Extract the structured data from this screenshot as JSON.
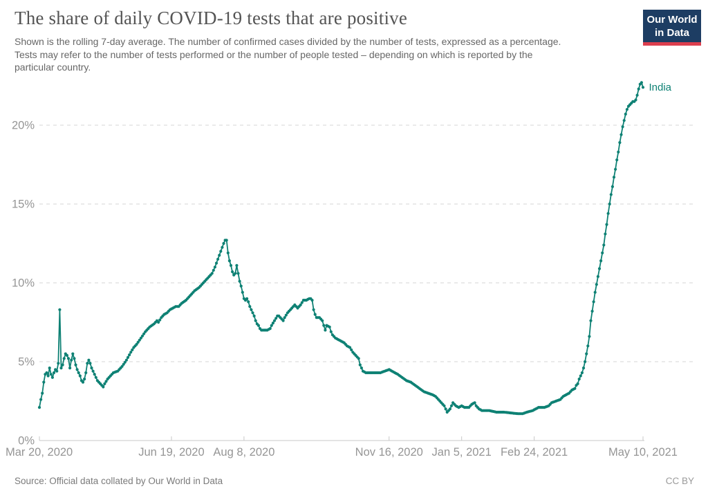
{
  "header": {
    "title": "The share of daily COVID-19 tests that are positive",
    "subtitle": "Shown is the rolling 7-day average. The number of confirmed cases divided by the number of tests, expressed as a percentage.\nTests may refer to the number of tests performed or the number of people tested – depending on which is reported by the\nparticular country.",
    "logo": {
      "line1": "Our World",
      "line2": "in Data",
      "bg_color": "#1d3d63",
      "bar_color": "#dc3e4e"
    }
  },
  "footer": {
    "source": "Source: Official data collated by Our World in Data",
    "license": "CC BY"
  },
  "chart_data": {
    "type": "line",
    "title": "The share of daily COVID-19 tests that are positive",
    "unit": "%",
    "grid": true,
    "legend": "end-of-line-label",
    "series_label": "India",
    "line_color": "#0e8174",
    "axis_text_color": "#959595",
    "grid_color": "#d6d6d6",
    "axis_line_color": "#c8c8c8",
    "ylim": [
      0,
      23
    ],
    "x_range_days": 416,
    "x_axis_range": [
      "Mar 20, 2020",
      "May 10, 2021"
    ],
    "y_ticks": [
      {
        "label": "0%",
        "value": 0
      },
      {
        "label": "5%",
        "value": 5
      },
      {
        "label": "10%",
        "value": 10
      },
      {
        "label": "15%",
        "value": 15
      },
      {
        "label": "20%",
        "value": 20
      }
    ],
    "x_ticks": [
      {
        "label": "Mar 20, 2020",
        "day": 0,
        "align": "start"
      },
      {
        "label": "Jun 19, 2020",
        "day": 91,
        "align": "middle"
      },
      {
        "label": "Aug 8, 2020",
        "day": 141,
        "align": "middle"
      },
      {
        "label": "Nov 16, 2020",
        "day": 241,
        "align": "middle"
      },
      {
        "label": "Jan 5, 2021",
        "day": 291,
        "align": "middle"
      },
      {
        "label": "Feb 24, 2021",
        "day": 341,
        "align": "middle"
      },
      {
        "label": "May 10, 2021",
        "day": 416,
        "align": "middle"
      }
    ],
    "series": [
      {
        "name": "India",
        "points": [
          [
            0,
            2.1
          ],
          [
            1,
            2.6
          ],
          [
            2,
            3.0
          ],
          [
            3,
            3.7
          ],
          [
            4,
            4.2
          ],
          [
            5,
            4.3
          ],
          [
            6,
            4.1
          ],
          [
            7,
            4.6
          ],
          [
            8,
            4.2
          ],
          [
            9,
            4.0
          ],
          [
            10,
            4.3
          ],
          [
            11,
            4.5
          ],
          [
            12,
            4.4
          ],
          [
            13,
            4.9
          ],
          [
            14,
            8.3
          ],
          [
            15,
            4.6
          ],
          [
            16,
            4.8
          ],
          [
            17,
            5.2
          ],
          [
            18,
            5.5
          ],
          [
            19,
            5.4
          ],
          [
            20,
            5.2
          ],
          [
            21,
            4.6
          ],
          [
            22,
            5.1
          ],
          [
            23,
            5.5
          ],
          [
            24,
            5.2
          ],
          [
            25,
            4.8
          ],
          [
            26,
            4.5
          ],
          [
            27,
            4.3
          ],
          [
            28,
            4.1
          ],
          [
            29,
            3.8
          ],
          [
            30,
            3.7
          ],
          [
            31,
            3.9
          ],
          [
            32,
            4.3
          ],
          [
            33,
            4.9
          ],
          [
            34,
            5.1
          ],
          [
            35,
            4.9
          ],
          [
            36,
            4.6
          ],
          [
            38,
            4.2
          ],
          [
            40,
            3.8
          ],
          [
            42,
            3.6
          ],
          [
            44,
            3.4
          ],
          [
            45,
            3.6
          ],
          [
            47,
            3.9
          ],
          [
            49,
            4.1
          ],
          [
            51,
            4.3
          ],
          [
            54,
            4.4
          ],
          [
            57,
            4.7
          ],
          [
            60,
            5.1
          ],
          [
            63,
            5.6
          ],
          [
            65,
            5.9
          ],
          [
            67,
            6.1
          ],
          [
            70,
            6.5
          ],
          [
            73,
            6.9
          ],
          [
            76,
            7.2
          ],
          [
            79,
            7.4
          ],
          [
            81,
            7.6
          ],
          [
            82,
            7.5
          ],
          [
            84,
            7.8
          ],
          [
            86,
            8.0
          ],
          [
            88,
            8.1
          ],
          [
            90,
            8.3
          ],
          [
            92,
            8.4
          ],
          [
            94,
            8.5
          ],
          [
            96,
            8.5
          ],
          [
            98,
            8.7
          ],
          [
            101,
            8.9
          ],
          [
            104,
            9.2
          ],
          [
            107,
            9.5
          ],
          [
            110,
            9.7
          ],
          [
            113,
            10.0
          ],
          [
            116,
            10.3
          ],
          [
            119,
            10.6
          ],
          [
            121,
            11.0
          ],
          [
            123,
            11.5
          ],
          [
            125,
            12.0
          ],
          [
            127,
            12.5
          ],
          [
            128,
            12.7
          ],
          [
            129,
            12.7
          ],
          [
            130,
            11.9
          ],
          [
            131,
            11.4
          ],
          [
            132,
            11.1
          ],
          [
            133,
            10.7
          ],
          [
            134,
            10.5
          ],
          [
            135,
            10.6
          ],
          [
            136,
            11.1
          ],
          [
            137,
            10.6
          ],
          [
            138,
            10.1
          ],
          [
            139,
            9.8
          ],
          [
            140,
            9.4
          ],
          [
            141,
            9.0
          ],
          [
            142,
            8.9
          ],
          [
            143,
            9.0
          ],
          [
            144,
            8.8
          ],
          [
            145,
            8.5
          ],
          [
            146,
            8.3
          ],
          [
            147,
            8.1
          ],
          [
            148,
            7.9
          ],
          [
            149,
            7.6
          ],
          [
            150,
            7.4
          ],
          [
            151,
            7.3
          ],
          [
            152,
            7.1
          ],
          [
            153,
            7.0
          ],
          [
            157,
            7.0
          ],
          [
            159,
            7.1
          ],
          [
            160,
            7.3
          ],
          [
            162,
            7.6
          ],
          [
            164,
            7.9
          ],
          [
            165,
            7.9
          ],
          [
            166,
            7.8
          ],
          [
            167,
            7.7
          ],
          [
            168,
            7.6
          ],
          [
            169,
            7.8
          ],
          [
            171,
            8.1
          ],
          [
            173,
            8.3
          ],
          [
            175,
            8.5
          ],
          [
            176,
            8.6
          ],
          [
            177,
            8.5
          ],
          [
            178,
            8.4
          ],
          [
            180,
            8.6
          ],
          [
            182,
            8.9
          ],
          [
            184,
            8.9
          ],
          [
            186,
            9.0
          ],
          [
            187,
            9.0
          ],
          [
            188,
            8.9
          ],
          [
            189,
            8.3
          ],
          [
            190,
            8.0
          ],
          [
            191,
            7.8
          ],
          [
            193,
            7.8
          ],
          [
            194,
            7.7
          ],
          [
            195,
            7.6
          ],
          [
            196,
            7.3
          ],
          [
            197,
            7.0
          ],
          [
            198,
            7.3
          ],
          [
            200,
            7.2
          ],
          [
            201,
            6.9
          ],
          [
            202,
            6.7
          ],
          [
            204,
            6.5
          ],
          [
            206,
            6.4
          ],
          [
            208,
            6.3
          ],
          [
            210,
            6.2
          ],
          [
            212,
            6.0
          ],
          [
            214,
            5.9
          ],
          [
            216,
            5.6
          ],
          [
            218,
            5.4
          ],
          [
            220,
            5.2
          ],
          [
            221,
            4.8
          ],
          [
            222,
            4.6
          ],
          [
            223,
            4.4
          ],
          [
            225,
            4.3
          ],
          [
            230,
            4.3
          ],
          [
            235,
            4.3
          ],
          [
            238,
            4.4
          ],
          [
            241,
            4.5
          ],
          [
            243,
            4.4
          ],
          [
            245,
            4.3
          ],
          [
            247,
            4.2
          ],
          [
            250,
            4.0
          ],
          [
            253,
            3.8
          ],
          [
            256,
            3.7
          ],
          [
            259,
            3.5
          ],
          [
            262,
            3.3
          ],
          [
            265,
            3.1
          ],
          [
            268,
            3.0
          ],
          [
            271,
            2.9
          ],
          [
            273,
            2.8
          ],
          [
            275,
            2.6
          ],
          [
            277,
            2.4
          ],
          [
            279,
            2.2
          ],
          [
            281,
            1.8
          ],
          [
            283,
            2.0
          ],
          [
            285,
            2.4
          ],
          [
            287,
            2.2
          ],
          [
            289,
            2.1
          ],
          [
            291,
            2.2
          ],
          [
            293,
            2.1
          ],
          [
            296,
            2.1
          ],
          [
            298,
            2.3
          ],
          [
            300,
            2.4
          ],
          [
            301,
            2.2
          ],
          [
            303,
            2.0
          ],
          [
            305,
            1.9
          ],
          [
            310,
            1.9
          ],
          [
            315,
            1.8
          ],
          [
            320,
            1.8
          ],
          [
            325,
            1.75
          ],
          [
            330,
            1.7
          ],
          [
            333,
            1.7
          ],
          [
            336,
            1.8
          ],
          [
            340,
            1.9
          ],
          [
            342,
            2.0
          ],
          [
            344,
            2.1
          ],
          [
            348,
            2.1
          ],
          [
            351,
            2.2
          ],
          [
            353,
            2.4
          ],
          [
            356,
            2.5
          ],
          [
            359,
            2.6
          ],
          [
            361,
            2.8
          ],
          [
            363,
            2.9
          ],
          [
            365,
            3.0
          ],
          [
            367,
            3.2
          ],
          [
            369,
            3.3
          ],
          [
            370,
            3.5
          ],
          [
            371,
            3.6
          ],
          [
            372,
            3.9
          ],
          [
            373,
            4.1
          ],
          [
            374,
            4.3
          ],
          [
            375,
            4.6
          ],
          [
            376,
            5.0
          ],
          [
            377,
            5.5
          ],
          [
            378,
            6.0
          ],
          [
            379,
            6.6
          ],
          [
            380,
            7.6
          ],
          [
            381,
            8.2
          ],
          [
            382,
            8.8
          ],
          [
            383,
            9.4
          ],
          [
            384,
            9.9
          ],
          [
            385,
            10.4
          ],
          [
            386,
            10.9
          ],
          [
            387,
            11.4
          ],
          [
            388,
            11.9
          ],
          [
            389,
            12.4
          ],
          [
            390,
            13.1
          ],
          [
            391,
            13.7
          ],
          [
            392,
            14.4
          ],
          [
            393,
            15.0
          ],
          [
            394,
            15.6
          ],
          [
            395,
            16.1
          ],
          [
            396,
            16.7
          ],
          [
            397,
            17.2
          ],
          [
            398,
            17.8
          ],
          [
            399,
            18.3
          ],
          [
            400,
            18.9
          ],
          [
            401,
            19.4
          ],
          [
            402,
            19.9
          ],
          [
            403,
            20.3
          ],
          [
            404,
            20.7
          ],
          [
            405,
            21.0
          ],
          [
            406,
            21.2
          ],
          [
            407,
            21.3
          ],
          [
            408,
            21.4
          ],
          [
            409,
            21.5
          ],
          [
            410,
            21.5
          ],
          [
            411,
            21.6
          ],
          [
            412,
            21.9
          ],
          [
            413,
            22.3
          ],
          [
            414,
            22.6
          ],
          [
            415,
            22.7
          ],
          [
            416,
            22.4
          ]
        ]
      }
    ]
  }
}
